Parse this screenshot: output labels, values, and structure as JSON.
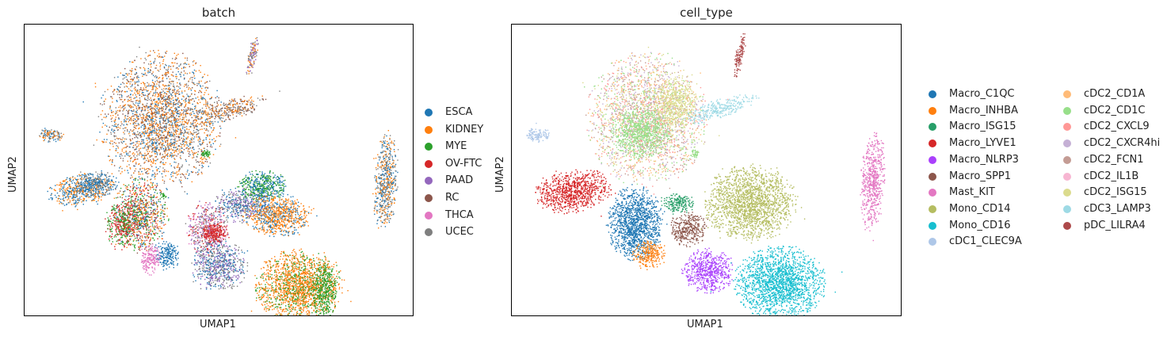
{
  "chart_data": [
    {
      "type": "scatter",
      "title": "batch",
      "xlabel": "UMAP1",
      "ylabel": "UMAP2",
      "grid": false,
      "legend_placement": "right",
      "legend": [
        {
          "name": "ESCA",
          "color": "#1f77b4"
        },
        {
          "name": "KIDNEY",
          "color": "#ff7f0e"
        },
        {
          "name": "MYE",
          "color": "#2ca02c"
        },
        {
          "name": "OV-FTC",
          "color": "#d62728"
        },
        {
          "name": "PAAD",
          "color": "#9467bd"
        },
        {
          "name": "RC",
          "color": "#8c564b"
        },
        {
          "name": "THCA",
          "color": "#e377c2"
        },
        {
          "name": "UCEC",
          "color": "#7f7f7f"
        }
      ]
    },
    {
      "type": "scatter",
      "title": "cell_type",
      "xlabel": "UMAP1",
      "ylabel": "UMAP2",
      "grid": false,
      "legend_placement": "right",
      "legend": [
        {
          "name": "Macro_C1QC",
          "color": "#1f77b4"
        },
        {
          "name": "Macro_INHBA",
          "color": "#ff7f0e"
        },
        {
          "name": "Macro_ISG15",
          "color": "#279e68"
        },
        {
          "name": "Macro_LYVE1",
          "color": "#d62728"
        },
        {
          "name": "Macro_NLRP3",
          "color": "#aa40fc"
        },
        {
          "name": "Macro_SPP1",
          "color": "#8c564b"
        },
        {
          "name": "Mast_KIT",
          "color": "#e377c2"
        },
        {
          "name": "Mono_CD14",
          "color": "#b5bd61"
        },
        {
          "name": "Mono_CD16",
          "color": "#17becf"
        },
        {
          "name": "cDC1_CLEC9A",
          "color": "#aec7e8"
        },
        {
          "name": "cDC2_CD1A",
          "color": "#ffbb78"
        },
        {
          "name": "cDC2_CD1C",
          "color": "#98df8a"
        },
        {
          "name": "cDC2_CXCL9",
          "color": "#ff9896"
        },
        {
          "name": "cDC2_CXCR4hi",
          "color": "#c5b0d5"
        },
        {
          "name": "cDC2_FCN1",
          "color": "#c49c94"
        },
        {
          "name": "cDC2_IL1B",
          "color": "#f7b6d2"
        },
        {
          "name": "cDC2_ISG15",
          "color": "#dbdb8d"
        },
        {
          "name": "cDC3_LAMP3",
          "color": "#9edae5"
        },
        {
          "name": "pDC_LILRA4",
          "color": "#ad494a"
        }
      ]
    }
  ]
}
